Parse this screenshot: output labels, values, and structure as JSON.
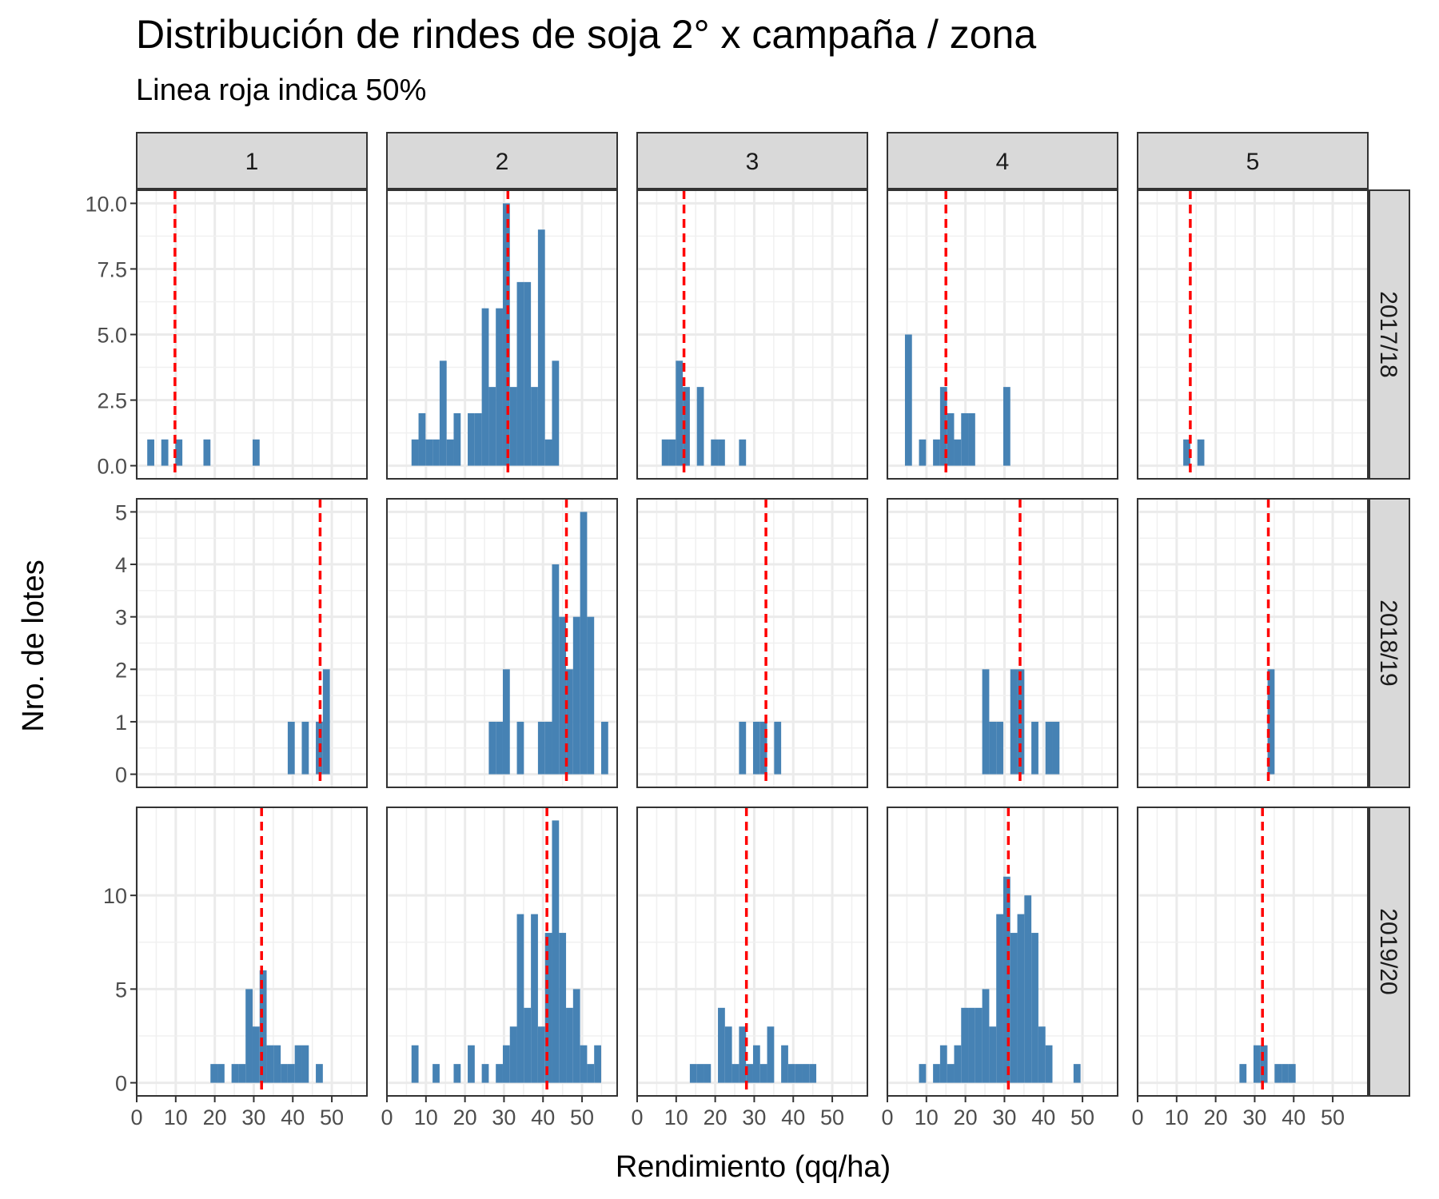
{
  "chart_data": {
    "type": "bar",
    "subtype": "faceted-histogram",
    "title": "Distribución de rindes de soja 2° x campaña / zona",
    "subtitle": "Linea roja indica 50%",
    "xlabel": "Rendimiento (qq/ha)",
    "ylabel": "Nro. de lotes",
    "xlim": [
      0,
      59
    ],
    "x_ticks": [
      0,
      10,
      20,
      30,
      40,
      50
    ],
    "bin_width": 1.8,
    "bar_color": "#4682B4",
    "median_line_color": "#FF0000",
    "grid": true,
    "zones": [
      "1",
      "2",
      "3",
      "4",
      "5"
    ],
    "campaigns": [
      {
        "label": "2017/18",
        "ylim": [
          -0.5,
          10.5
        ],
        "y_ticks": [
          0,
          2.5,
          5,
          7.5,
          10
        ],
        "y_tick_labels": [
          "0.0",
          "2.5",
          "5.0",
          "7.5",
          "10.0"
        ],
        "panels": [
          {
            "zone": "1",
            "median": 9.8,
            "bins": [
              [
                3.6,
                1
              ],
              [
                7.2,
                1
              ],
              [
                10.8,
                1
              ],
              [
                18,
                1
              ],
              [
                30.6,
                1
              ]
            ]
          },
          {
            "zone": "2",
            "median": 31,
            "bins": [
              [
                7.2,
                1
              ],
              [
                9,
                2
              ],
              [
                10.8,
                1
              ],
              [
                12.6,
                1
              ],
              [
                14.4,
                4
              ],
              [
                16.2,
                1
              ],
              [
                18,
                2
              ],
              [
                21.6,
                2
              ],
              [
                23.4,
                2
              ],
              [
                25.2,
                6
              ],
              [
                27,
                3
              ],
              [
                28.8,
                6
              ],
              [
                30.6,
                10
              ],
              [
                32.4,
                3
              ],
              [
                34.2,
                7
              ],
              [
                36,
                7
              ],
              [
                37.8,
                3
              ],
              [
                39.6,
                9
              ],
              [
                41.4,
                1
              ],
              [
                43.2,
                4
              ]
            ]
          },
          {
            "zone": "3",
            "median": 12,
            "bins": [
              [
                7.2,
                1
              ],
              [
                9,
                1
              ],
              [
                10.8,
                4
              ],
              [
                12.6,
                3
              ],
              [
                16.2,
                3
              ],
              [
                19.8,
                1
              ],
              [
                21.6,
                1
              ],
              [
                27,
                1
              ]
            ]
          },
          {
            "zone": "4",
            "median": 15,
            "bins": [
              [
                5.4,
                5
              ],
              [
                9,
                1
              ],
              [
                12.6,
                1
              ],
              [
                14.4,
                3
              ],
              [
                16.2,
                2
              ],
              [
                18,
                1
              ],
              [
                19.8,
                2
              ],
              [
                21.6,
                2
              ],
              [
                30.6,
                3
              ]
            ]
          },
          {
            "zone": "5",
            "median": 13.5,
            "bins": [
              [
                12.6,
                1
              ],
              [
                16.2,
                1
              ]
            ]
          }
        ]
      },
      {
        "label": "2018/19",
        "ylim": [
          -0.25,
          5.25
        ],
        "y_ticks": [
          0,
          1,
          2,
          3,
          4,
          5
        ],
        "y_tick_labels": [
          "0",
          "1",
          "2",
          "3",
          "4",
          "5"
        ],
        "panels": [
          {
            "zone": "1",
            "median": 47,
            "bins": [
              [
                39.6,
                1
              ],
              [
                43.2,
                1
              ],
              [
                46.8,
                1
              ],
              [
                48.6,
                2
              ]
            ]
          },
          {
            "zone": "2",
            "median": 46,
            "bins": [
              [
                27,
                1
              ],
              [
                28.8,
                1
              ],
              [
                30.6,
                2
              ],
              [
                34.2,
                1
              ],
              [
                39.6,
                1
              ],
              [
                41.4,
                1
              ],
              [
                43.2,
                4
              ],
              [
                45,
                3
              ],
              [
                46.8,
                2
              ],
              [
                48.6,
                3
              ],
              [
                50.4,
                5
              ],
              [
                52.2,
                3
              ],
              [
                55.8,
                1
              ]
            ]
          },
          {
            "zone": "3",
            "median": 33,
            "bins": [
              [
                27,
                1
              ],
              [
                30.6,
                1
              ],
              [
                32.4,
                1
              ],
              [
                36,
                1
              ]
            ]
          },
          {
            "zone": "4",
            "median": 34,
            "bins": [
              [
                25.2,
                2
              ],
              [
                27,
                1
              ],
              [
                28.8,
                1
              ],
              [
                32.4,
                2
              ],
              [
                34.2,
                2
              ],
              [
                37.8,
                1
              ],
              [
                41.4,
                1
              ],
              [
                43.2,
                1
              ]
            ]
          },
          {
            "zone": "5",
            "median": 33.5,
            "bins": [
              [
                34.2,
                2
              ]
            ]
          }
        ]
      },
      {
        "label": "2019/20",
        "ylim": [
          -0.7,
          14.7
        ],
        "y_ticks": [
          0,
          5,
          10
        ],
        "y_tick_labels": [
          "0",
          "5",
          "10"
        ],
        "panels": [
          {
            "zone": "1",
            "median": 32,
            "bins": [
              [
                19.8,
                1
              ],
              [
                21.6,
                1
              ],
              [
                25.2,
                1
              ],
              [
                27,
                1
              ],
              [
                28.8,
                5
              ],
              [
                30.6,
                3
              ],
              [
                32.4,
                6
              ],
              [
                34.2,
                2
              ],
              [
                36,
                2
              ],
              [
                37.8,
                1
              ],
              [
                39.6,
                1
              ],
              [
                41.4,
                2
              ],
              [
                43.2,
                2
              ],
              [
                46.8,
                1
              ]
            ]
          },
          {
            "zone": "2",
            "median": 41,
            "bins": [
              [
                7.2,
                2
              ],
              [
                12.6,
                1
              ],
              [
                18,
                1
              ],
              [
                21.6,
                2
              ],
              [
                25.2,
                1
              ],
              [
                28.8,
                1
              ],
              [
                30.6,
                2
              ],
              [
                32.4,
                3
              ],
              [
                34.2,
                9
              ],
              [
                36,
                4
              ],
              [
                37.8,
                9
              ],
              [
                39.6,
                3
              ],
              [
                41.4,
                8
              ],
              [
                43.2,
                14
              ],
              [
                45,
                8
              ],
              [
                46.8,
                4
              ],
              [
                48.6,
                5
              ],
              [
                50.4,
                2
              ],
              [
                52.2,
                1
              ],
              [
                54,
                2
              ]
            ]
          },
          {
            "zone": "3",
            "median": 28,
            "bins": [
              [
                14.4,
                1
              ],
              [
                16.2,
                1
              ],
              [
                18,
                1
              ],
              [
                21.6,
                4
              ],
              [
                23.4,
                3
              ],
              [
                25.2,
                1
              ],
              [
                27,
                3
              ],
              [
                28.8,
                1
              ],
              [
                30.6,
                2
              ],
              [
                32.4,
                1
              ],
              [
                34.2,
                3
              ],
              [
                37.8,
                2
              ],
              [
                39.6,
                1
              ],
              [
                41.4,
                1
              ],
              [
                43.2,
                1
              ],
              [
                45,
                1
              ]
            ]
          },
          {
            "zone": "4",
            "median": 31,
            "bins": [
              [
                9,
                1
              ],
              [
                12.6,
                1
              ],
              [
                14.4,
                2
              ],
              [
                16.2,
                1
              ],
              [
                18,
                2
              ],
              [
                19.8,
                4
              ],
              [
                21.6,
                4
              ],
              [
                23.4,
                4
              ],
              [
                25.2,
                5
              ],
              [
                27,
                3
              ],
              [
                28.8,
                9
              ],
              [
                30.6,
                11
              ],
              [
                32.4,
                8
              ],
              [
                34.2,
                9
              ],
              [
                36,
                10
              ],
              [
                37.8,
                8
              ],
              [
                39.6,
                3
              ],
              [
                41.4,
                2
              ],
              [
                48.6,
                1
              ]
            ]
          },
          {
            "zone": "5",
            "median": 32,
            "bins": [
              [
                27,
                1
              ],
              [
                30.6,
                2
              ],
              [
                32.4,
                2
              ],
              [
                36,
                1
              ],
              [
                37.8,
                1
              ],
              [
                39.6,
                1
              ]
            ]
          }
        ]
      }
    ]
  }
}
